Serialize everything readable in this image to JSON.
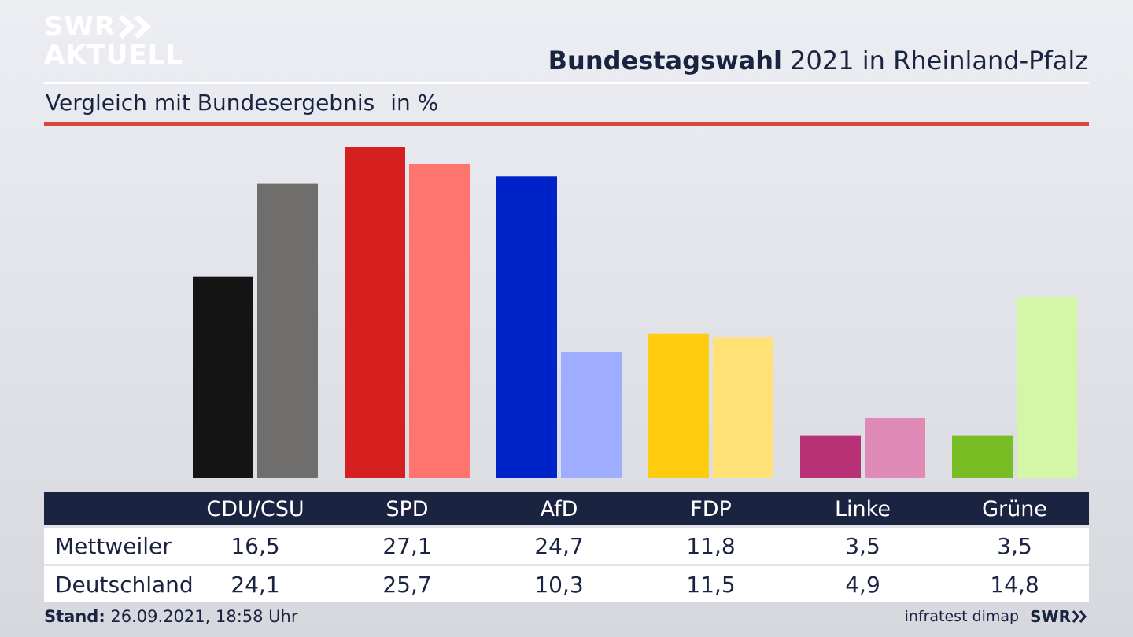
{
  "logo": {
    "line1": "SWR",
    "line2": "AKTUELL"
  },
  "title": {
    "bold": "Bundestagswahl",
    "rest": " 2021 in Rheinland-Pfalz"
  },
  "subtitle": {
    "text": "Vergleich mit Bundesergebnis",
    "unit": "in %"
  },
  "footer": {
    "stand_label": "Stand:",
    "stand_value": " 26.09.2021, 18:58 Uhr",
    "source": "infratest dimap",
    "brand": "SWR"
  },
  "table": {
    "rows": [
      {
        "label": "Mettweiler",
        "values": [
          "16,5",
          "27,1",
          "24,7",
          "11,8",
          "3,5",
          "3,5"
        ]
      },
      {
        "label": "Deutschland",
        "values": [
          "24,1",
          "25,7",
          "10,3",
          "11,5",
          "4,9",
          "14,8"
        ]
      }
    ]
  },
  "chart_data": {
    "type": "bar",
    "categories": [
      "CDU/CSU",
      "SPD",
      "AfD",
      "FDP",
      "Linke",
      "Grüne"
    ],
    "series": [
      {
        "name": "Mettweiler",
        "values": [
          16.5,
          27.1,
          24.7,
          11.8,
          3.5,
          3.5
        ],
        "colors": [
          "#141414",
          "#d61f1f",
          "#0022c9",
          "#ffcc0f",
          "#b83075",
          "#78bd24"
        ]
      },
      {
        "name": "Deutschland",
        "values": [
          24.1,
          25.7,
          10.3,
          11.5,
          4.9,
          14.8
        ],
        "colors": [
          "#706e6c",
          "#ff756e",
          "#9eadff",
          "#ffe175",
          "#e08ab8",
          "#d4f7a7"
        ]
      }
    ],
    "ylim": [
      0,
      27.1
    ],
    "grid": false
  }
}
